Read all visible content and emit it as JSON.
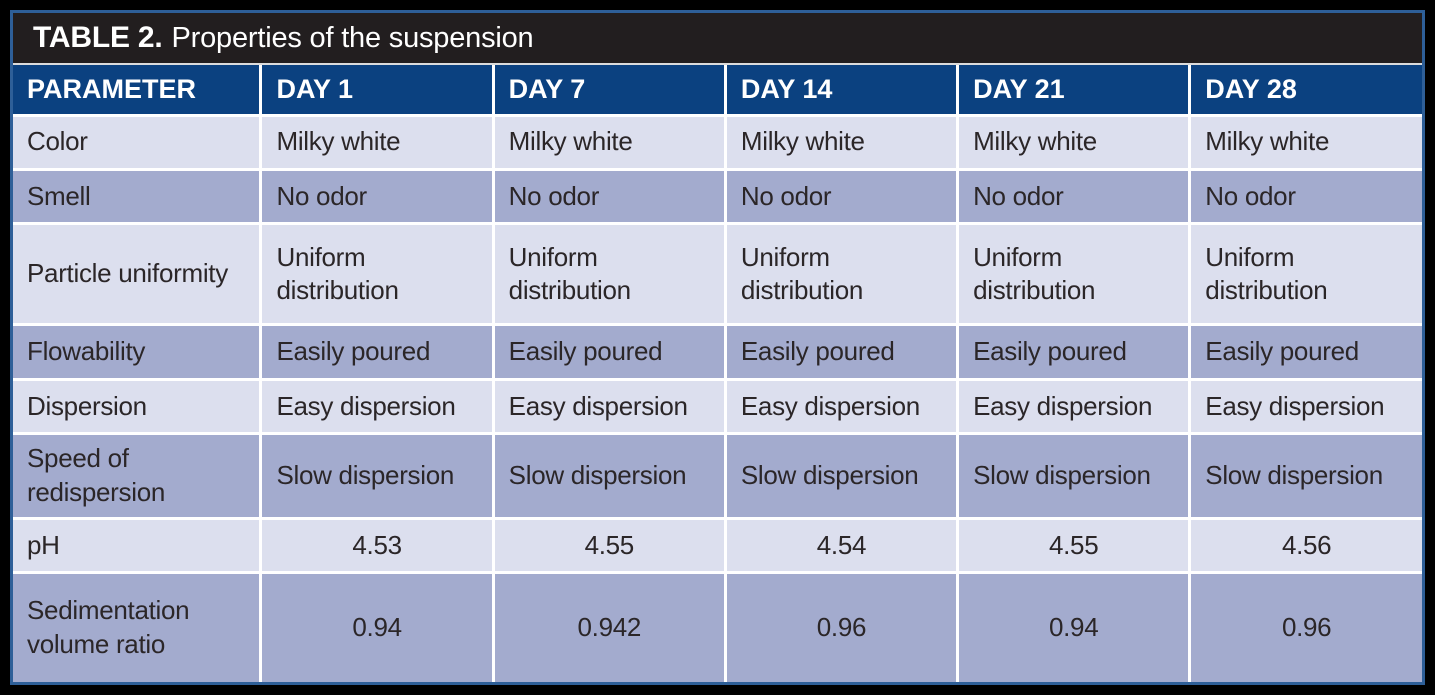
{
  "table": {
    "title_label": "TABLE 2.",
    "title_caption": "Properties of the suspension",
    "columns": [
      "PARAMETER",
      "DAY 1",
      "DAY 7",
      "DAY 14",
      "DAY 21",
      "DAY 28"
    ],
    "rows": [
      {
        "parameter": "Color",
        "align": "left",
        "values": [
          "Milky white",
          "Milky white",
          "Milky white",
          "Milky white",
          "Milky white"
        ]
      },
      {
        "parameter": "Smell",
        "align": "left",
        "values": [
          "No odor",
          "No odor",
          "No odor",
          "No odor",
          "No odor"
        ]
      },
      {
        "parameter": "Particle uniformity",
        "align": "left",
        "values": [
          "Uniform distribution",
          "Uniform distribution",
          "Uniform distribution",
          "Uniform distribution",
          "Uniform distribution"
        ]
      },
      {
        "parameter": "Flowability",
        "align": "left",
        "values": [
          "Easily poured",
          "Easily poured",
          "Easily poured",
          "Easily poured",
          "Easily poured"
        ]
      },
      {
        "parameter": "Dispersion",
        "align": "left",
        "values": [
          "Easy dispersion",
          "Easy dispersion",
          "Easy dispersion",
          "Easy dispersion",
          "Easy dispersion"
        ]
      },
      {
        "parameter": "Speed of redispersion",
        "align": "left",
        "values": [
          "Slow dispersion",
          "Slow dispersion",
          "Slow dispersion",
          "Slow dispersion",
          "Slow dispersion"
        ]
      },
      {
        "parameter": "pH",
        "align": "center",
        "values": [
          "4.53",
          "4.55",
          "4.54",
          "4.55",
          "4.56"
        ]
      },
      {
        "parameter": "Sedimentation volume ratio",
        "align": "center",
        "values": [
          "0.94",
          "0.942",
          "0.96",
          "0.94",
          "0.96"
        ]
      }
    ]
  },
  "colors": {
    "title_bg": "#221e1f",
    "header_bg": "#0b4180",
    "row_light": "#dcdfee",
    "row_dark": "#a3abce",
    "frame_blue": "#2e5f98",
    "frame_black": "#000000",
    "cell_text": "#2b2628",
    "grid_white": "#ffffff",
    "title_text": "#ffffff",
    "header_text": "#ffffff"
  }
}
